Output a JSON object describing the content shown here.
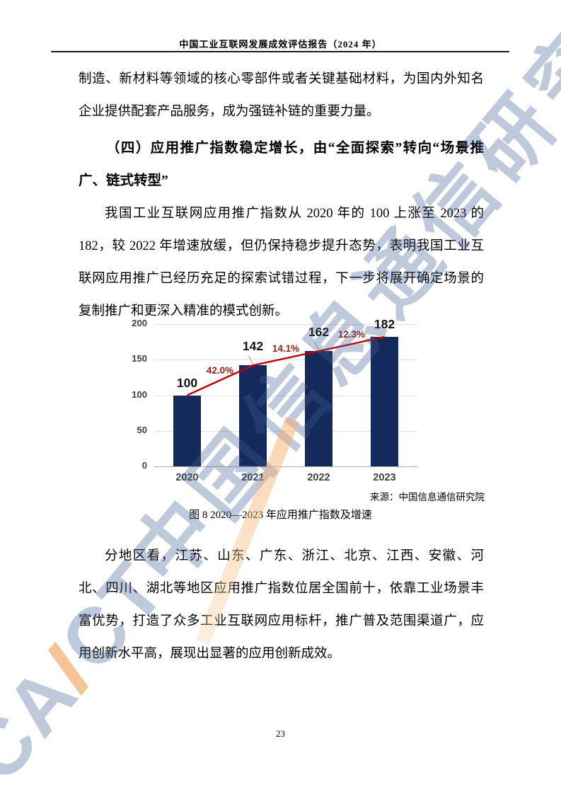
{
  "header": {
    "title": "中国工业互联网发展成效评估报告（2024 年）"
  },
  "content": {
    "paragraph_1": "制造、新材料等领域的核心零部件或者关键基础材料，为国内外知名企业提供配套产品服务，成为强链补链的重要力量。",
    "heading": "（四）应用推广指数稳定增长，由“全面探索”转向“场景推广、链式转型”",
    "paragraph_2": "我国工业互联网应用推广指数从 2020 年的 100 上涨至 2023 的 182，较 2022 年增速放缓，但仍保持稳步提升态势，表明我国工业互联网应用推广已经历充足的探索试错过程，下一步将展开确定场景的复制推广和更深入精准的模式创新。",
    "source": "来源：中国信息通信研究院",
    "caption": "图 8 2020—2023 年应用推广指数及增速",
    "paragraph_3": "分地区看，江苏、山东、广东、浙江、北京、江西、安徽、河北、四川、湖北等地区应用推广指数位居全国前十，依靠工业场景丰富优势，打造了众多工业互联网应用标杆，推广普及范围渠道广，应用创新水平高，展现出显著的应用创新成效。"
  },
  "chart_data": {
    "type": "bar",
    "title": "",
    "categories": [
      "2020",
      "2021",
      "2022",
      "2023"
    ],
    "values": [
      100,
      142,
      162,
      182
    ],
    "growth_line": {
      "type": "line",
      "labels": [
        "42.0%",
        "14.1%",
        "12.3%"
      ],
      "values_pct": [
        42.0,
        14.1,
        12.3
      ],
      "line_color": "#c00000",
      "label_color": "#9d1b1b"
    },
    "y_axis": {
      "min": 0,
      "max": 200,
      "ticks": [
        0,
        50,
        100,
        150,
        200
      ]
    },
    "xlabel": "",
    "ylabel": "",
    "bar_color": "#152a5c",
    "grid": true,
    "legend_position": "none"
  },
  "watermark": {
    "latin_left": "CA",
    "latin_accent": "I",
    "latin_right": "CT",
    "cjk": "中国信息通信研究院"
  },
  "footer": {
    "page_number": "23"
  }
}
